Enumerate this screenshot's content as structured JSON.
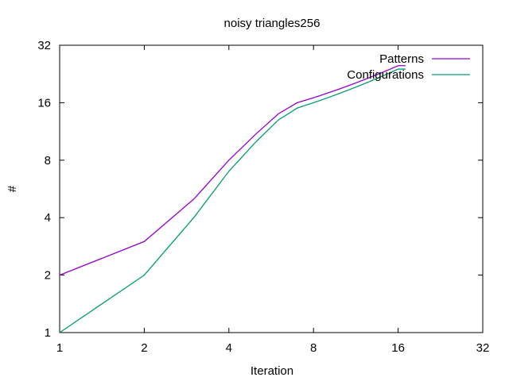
{
  "chart_data": {
    "type": "line",
    "title": "noisy triangles256",
    "xlabel": "Iteration",
    "ylabel": "#",
    "x_scale": "log2",
    "y_scale": "log2",
    "xlim": [
      1,
      32
    ],
    "ylim": [
      1,
      32
    ],
    "x_ticks": [
      1,
      2,
      4,
      8,
      16,
      32
    ],
    "y_ticks": [
      1,
      2,
      4,
      8,
      16,
      32
    ],
    "x_tick_labels": [
      "1",
      "2",
      "4",
      "8",
      "16",
      "32"
    ],
    "y_tick_labels": [
      "1",
      "2",
      "4",
      "8",
      "16",
      "32"
    ],
    "grid": false,
    "legend_position": "top-right",
    "series": [
      {
        "name": "Patterns",
        "color": "#9400d3",
        "x": [
          1,
          2,
          3,
          4,
          5,
          6,
          7,
          8,
          9,
          10,
          11,
          12,
          13,
          14,
          15,
          16,
          17
        ],
        "y": [
          2,
          3,
          5,
          8,
          11,
          14,
          16,
          17,
          18,
          19,
          20,
          21,
          22,
          23,
          24,
          25,
          25
        ]
      },
      {
        "name": "Configurations",
        "color": "#009e73",
        "x": [
          1,
          2,
          3,
          4,
          5,
          6,
          7,
          8,
          9,
          10,
          11,
          12,
          13,
          14,
          15,
          16,
          17
        ],
        "y": [
          1,
          2,
          4,
          7,
          10,
          13,
          15,
          16,
          17,
          18,
          19,
          20,
          21,
          22,
          23,
          24,
          24
        ]
      }
    ]
  }
}
